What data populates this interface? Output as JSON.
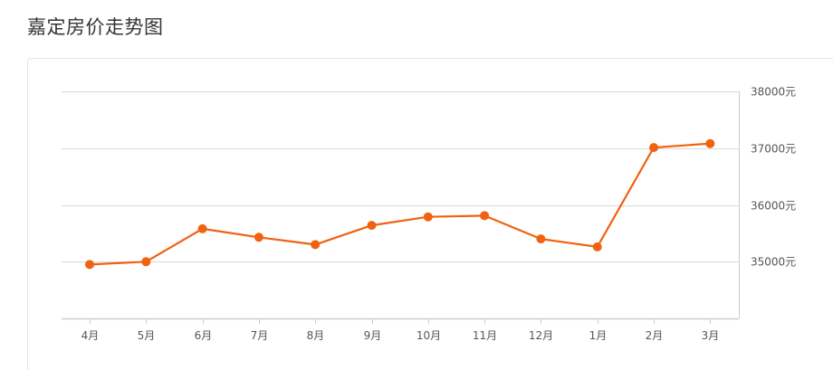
{
  "page": {
    "title": "嘉定房价走势图"
  },
  "colors": {
    "line": "#f0620f",
    "point": "#f0620f",
    "grid": "#d9d9d9",
    "axis": "#cccccc",
    "text": "#555555"
  },
  "chart_data": {
    "type": "line",
    "title": "",
    "xlabel": "",
    "ylabel": "",
    "categories": [
      "4月",
      "5月",
      "6月",
      "7月",
      "8月",
      "9月",
      "10月",
      "11月",
      "12月",
      "1月",
      "2月",
      "3月"
    ],
    "series": [
      {
        "values": [
          34950,
          35000,
          35580,
          35430,
          35300,
          35640,
          35790,
          35810,
          35400,
          35260,
          37010,
          37080
        ]
      }
    ],
    "y_ticks": [
      35000,
      36000,
      37000,
      38000
    ],
    "y_tick_labels": [
      "35000元",
      "36000元",
      "37000元",
      "38000元"
    ],
    "ylim": [
      34000,
      38000
    ],
    "y_axis_position": "right",
    "grid": true,
    "legend": "none"
  }
}
